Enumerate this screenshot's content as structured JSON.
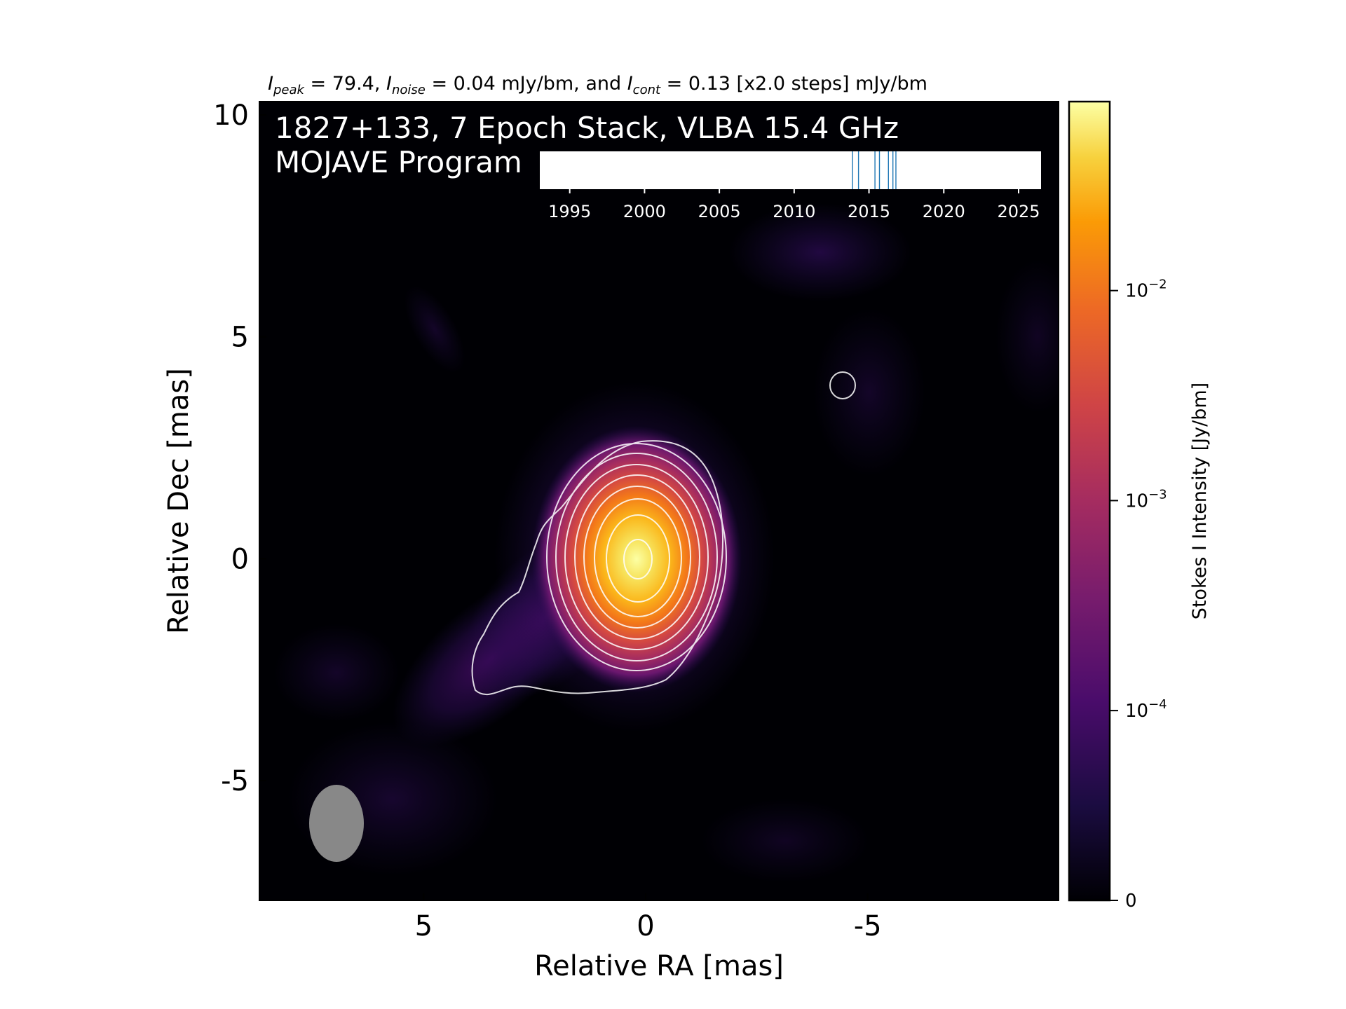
{
  "chart_data": {
    "type": "heatmap",
    "colormap": "inferno",
    "title_top": {
      "peak_label": "peak",
      "peak_value": "79.4",
      "noise_label": "noise",
      "noise_value": "0.04 mJy/bm",
      "cont_label": "cont",
      "cont_value": "0.13 [x2.0 steps] mJy/bm"
    },
    "overlay_title_line1": "1827+133, 7 Epoch Stack, VLBA 15.4 GHz",
    "overlay_title_line2": "MOJAVE Program",
    "xlabel": "Relative RA [mas]",
    "ylabel": "Relative Dec [mas]",
    "xlim": [
      8.7,
      -9.3
    ],
    "ylim": [
      -7.7,
      10.3
    ],
    "x_ticks": [
      5,
      0,
      -5
    ],
    "x_tick_labels": [
      "5",
      "0",
      "-5"
    ],
    "y_ticks": [
      10,
      5,
      0,
      -5
    ],
    "y_tick_labels": [
      "10",
      "5",
      "0",
      "-5"
    ],
    "colorbar": {
      "label": "Stokes I Intensity [Jy/bm]",
      "scale": "symlog",
      "ticks": [
        {
          "value": 0.01,
          "label_base": "10",
          "label_exp": "−2"
        },
        {
          "value": 0.001,
          "label_base": "10",
          "label_exp": "−3"
        },
        {
          "value": 0.0001,
          "label_base": "10",
          "label_exp": "−4"
        },
        {
          "value": 0,
          "label_base": "0",
          "label_exp": ""
        }
      ]
    },
    "epoch_timeline": {
      "axis_min": 1993,
      "axis_max": 2026.5,
      "ticks": [
        1995,
        2000,
        2005,
        2010,
        2015,
        2020,
        2025
      ],
      "tick_labels": [
        "1995",
        "2000",
        "2005",
        "2010",
        "2015",
        "2020",
        "2025"
      ],
      "epochs": [
        2013.9,
        2014.3,
        2015.4,
        2015.7,
        2016.3,
        2016.6,
        2016.8
      ]
    },
    "contour_levels_mJy": [
      0.13,
      0.26,
      0.52,
      1.04,
      2.08,
      4.16,
      8.32,
      16.64,
      33.28,
      66.56
    ],
    "beam": {
      "major_mas": 1.7,
      "minor_mas": 1.2,
      "pa_deg": 0
    },
    "colors": {
      "background": "#000004",
      "contour": "#ffffff",
      "beam": "#888888",
      "epoch_line": "#1f77b4"
    }
  }
}
